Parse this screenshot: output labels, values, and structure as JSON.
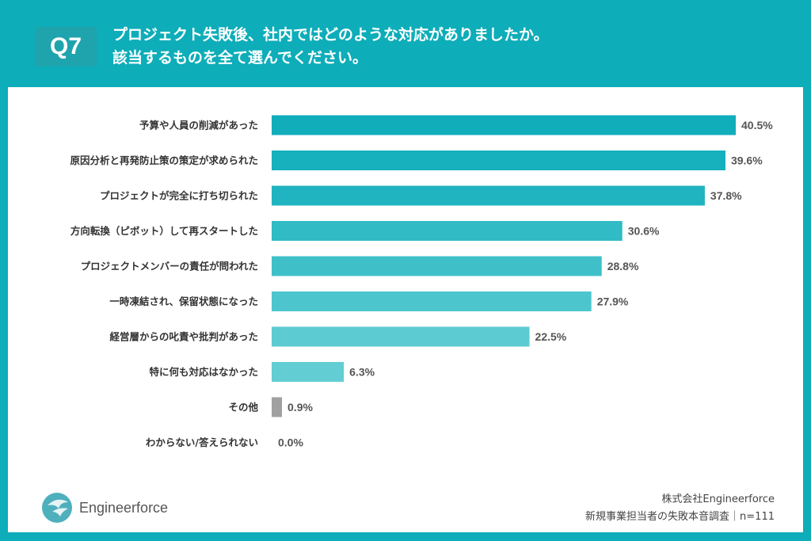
{
  "header": {
    "badge": "Q7",
    "title_line1": "プロジェクト失敗後、社内ではどのような対応がありましたか。",
    "title_line2": "該当するものを全て選んでください。"
  },
  "chart_data": {
    "type": "bar",
    "orientation": "horizontal",
    "categories": [
      "予算や人員の削減があった",
      "原因分析と再発防止策の策定が求められた",
      "プロジェクトが完全に打ち切られた",
      "方向転換（ピボット）して再スタートした",
      "プロジェクトメンバーの責任が問われた",
      "一時凍結され、保留状態になった",
      "経営層からの叱責や批判があった",
      "特に何も対応はなかった",
      "その他",
      "わからない/答えられない"
    ],
    "values": [
      40.5,
      39.6,
      37.8,
      30.6,
      28.8,
      27.9,
      22.5,
      6.3,
      0.9,
      0.0
    ],
    "labels": [
      "40.5%",
      "39.6%",
      "37.8%",
      "30.6%",
      "28.8%",
      "27.9%",
      "22.5%",
      "6.3%",
      "0.9%",
      "0.0%"
    ],
    "unit": "%",
    "grid": false,
    "colors": [
      "#12adbb",
      "#17b0bd",
      "#1fb4c0",
      "#30bbc5",
      "#3fc0c9",
      "#4cc5cd",
      "#5dcbd2",
      "#63cdd4",
      "#a0a0a0",
      "#a0a0a0"
    ]
  },
  "footer": {
    "logo_text": "Engineerforce",
    "company": "株式会社Engineerforce",
    "survey": "新規事業担当者の失敗本音調査｜n=111"
  }
}
